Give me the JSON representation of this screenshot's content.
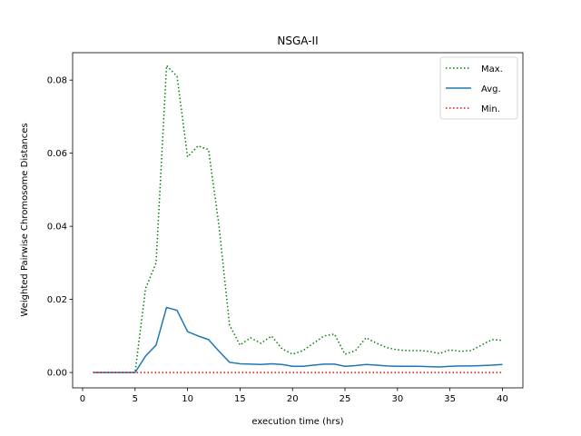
{
  "chart_data": {
    "type": "line",
    "title": "NSGA-II",
    "xlabel": "execution time (hrs)",
    "ylabel": "Weighted Pairwise Chromosome Distances",
    "xlim": [
      -0.95,
      41.95
    ],
    "ylim": [
      -0.0042,
      0.0875
    ],
    "xticks": [
      0,
      5,
      10,
      15,
      20,
      25,
      30,
      35,
      40
    ],
    "xtick_labels": [
      "0",
      "5",
      "10",
      "15",
      "20",
      "25",
      "30",
      "35",
      "40"
    ],
    "yticks": [
      0.0,
      0.02,
      0.04,
      0.06,
      0.08
    ],
    "ytick_labels": [
      "0.00",
      "0.02",
      "0.04",
      "0.06",
      "0.08"
    ],
    "grid": false,
    "legend_position": "top-right",
    "x": [
      1,
      2,
      3,
      4,
      5,
      6,
      7,
      8,
      9,
      10,
      11,
      12,
      13,
      14,
      15,
      16,
      17,
      18,
      19,
      20,
      21,
      22,
      23,
      24,
      25,
      26,
      27,
      28,
      29,
      30,
      31,
      32,
      33,
      34,
      35,
      36,
      37,
      38,
      39,
      40
    ],
    "series": [
      {
        "name": "Max.",
        "color": "#008000",
        "style": "dotted",
        "values": [
          0,
          0,
          0,
          0,
          0,
          0.023,
          0.03,
          0.084,
          0.081,
          0.059,
          0.062,
          0.061,
          0.04,
          0.013,
          0.0075,
          0.0095,
          0.008,
          0.01,
          0.0065,
          0.005,
          0.006,
          0.008,
          0.01,
          0.0105,
          0.005,
          0.006,
          0.0095,
          0.008,
          0.0068,
          0.0062,
          0.006,
          0.006,
          0.0058,
          0.0052,
          0.0062,
          0.0058,
          0.006,
          0.0075,
          0.009,
          0.0088
        ]
      },
      {
        "name": "Avg.",
        "color": "#1f77b4",
        "style": "solid",
        "values": [
          0,
          0,
          0,
          0,
          0,
          0.0045,
          0.0075,
          0.0178,
          0.017,
          0.0112,
          0.01,
          0.009,
          0.0058,
          0.0028,
          0.0024,
          0.0023,
          0.0022,
          0.0024,
          0.0022,
          0.0017,
          0.0017,
          0.002,
          0.0023,
          0.0023,
          0.0017,
          0.0019,
          0.0022,
          0.002,
          0.0018,
          0.0017,
          0.0017,
          0.0017,
          0.0016,
          0.0015,
          0.0017,
          0.0018,
          0.0018,
          0.0019,
          0.002,
          0.0022
        ]
      },
      {
        "name": "Min.",
        "color": "#ff0000",
        "style": "dotted",
        "values": [
          0,
          0,
          0,
          0,
          0,
          0,
          0,
          0,
          0,
          0,
          0,
          0,
          0,
          0,
          0,
          0,
          0,
          0,
          0,
          0,
          0,
          0,
          0,
          0,
          0,
          0,
          0,
          0,
          0,
          0,
          0,
          0,
          0,
          0,
          0,
          0,
          0,
          0,
          0,
          0
        ]
      }
    ]
  }
}
